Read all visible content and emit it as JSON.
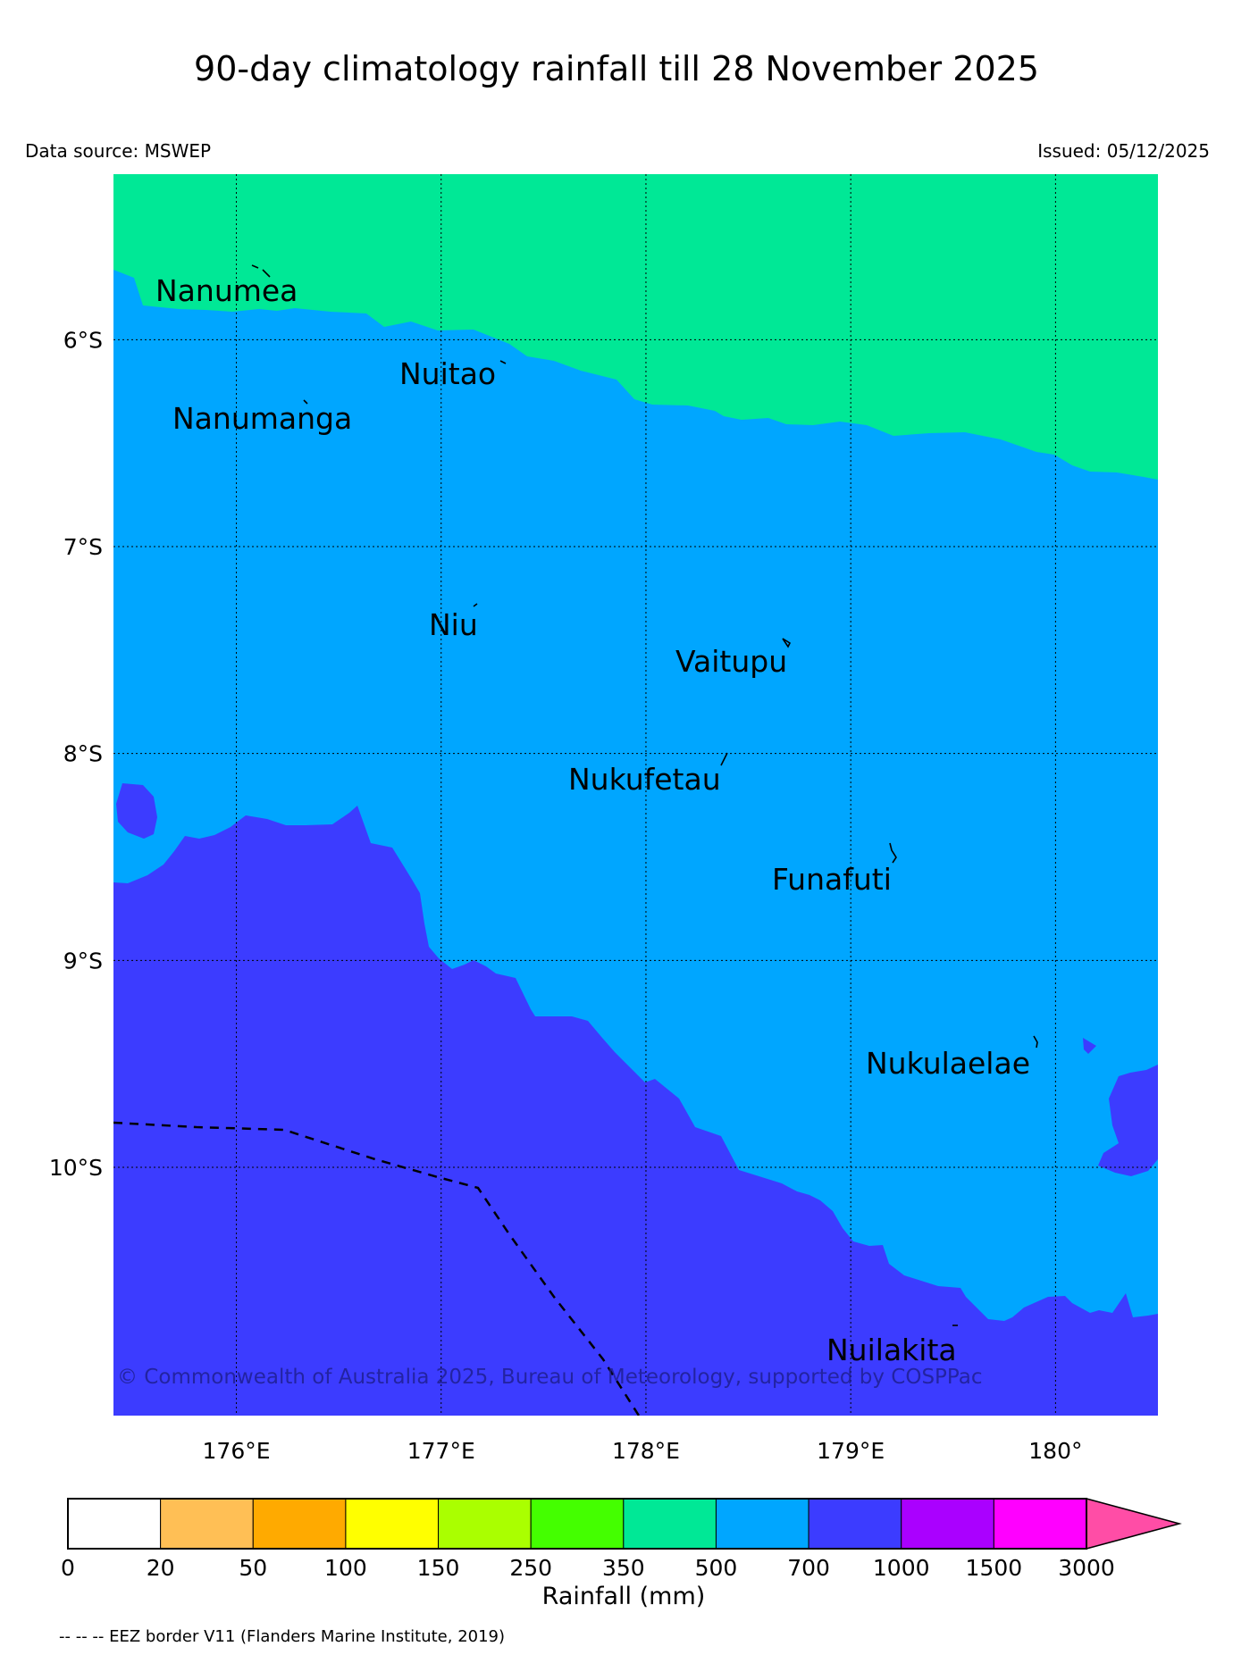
{
  "title": "90-day climatology rainfall till 28 November 2025",
  "data_source": "Data source: MSWEP",
  "issued": "Issued: 05/12/2025",
  "copyright": "© Commonwealth of Australia 2025, Bureau of Meteorology, supported by COSPPac",
  "eez_note": "-- -- -- EEZ border V11 (Flanders Marine Institute, 2019)",
  "colors": {
    "c350_500": "#00e896",
    "c500_700": "#00a6ff",
    "c700_1000": "#3c3cff"
  },
  "map": {
    "lon_range": [
      175.4,
      180.5
    ],
    "lat_range": [
      -11.2,
      -5.2
    ],
    "lon_ticks": [
      {
        "value": 176,
        "label": "176°E"
      },
      {
        "value": 177,
        "label": "177°E"
      },
      {
        "value": 178,
        "label": "178°E"
      },
      {
        "value": 179,
        "label": "179°E"
      },
      {
        "value": 180,
        "label": "180°"
      }
    ],
    "lat_ticks": [
      {
        "value": -6,
        "label": "6°S"
      },
      {
        "value": -7,
        "label": "7°S"
      },
      {
        "value": -8,
        "label": "8°S"
      },
      {
        "value": -9,
        "label": "9°S"
      },
      {
        "value": -10,
        "label": "10°S"
      }
    ],
    "places": [
      {
        "name": "Nanumea",
        "lon": 176.13,
        "lat": -5.66
      },
      {
        "name": "Nuitao",
        "lon": 177.33,
        "lat": -6.11
      },
      {
        "name": "Nanumanga",
        "lon": 176.32,
        "lat": -6.29
      },
      {
        "name": "Niu",
        "lon": 177.17,
        "lat": -7.29
      },
      {
        "name": "Vaitupu",
        "lon": 178.68,
        "lat": -7.48
      },
      {
        "name": "Nukufetau",
        "lon": 178.38,
        "lat": -8.02
      },
      {
        "name": "Funafuti",
        "lon": 179.2,
        "lat": -8.52
      },
      {
        "name": "Nukulaelae",
        "lon": 179.83,
        "lat": -9.38
      },
      {
        "name": "Nuilakita",
        "lon": 179.53,
        "lat": -10.74
      }
    ]
  },
  "colorbar": {
    "label": "Rainfall (mm)",
    "ticks": [
      "0",
      "20",
      "50",
      "100",
      "150",
      "250",
      "350",
      "500",
      "700",
      "1000",
      "1500",
      "3000"
    ],
    "colors": [
      "#ffffff",
      "#ffbf55",
      "#ffaa00",
      "#ffff00",
      "#aaff00",
      "#44ff00",
      "#00e896",
      "#00a6ff",
      "#3c3cff",
      "#aa00ff",
      "#ff00ff"
    ],
    "extend_color": "#ff4da6"
  }
}
